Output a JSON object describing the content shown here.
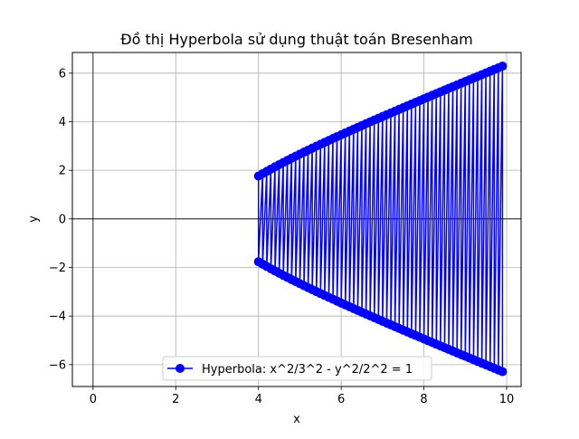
{
  "chart_data": {
    "type": "line",
    "title": "Đồ thị Hyperbola sử dụng thuật toán Bresenham",
    "xlabel": "x",
    "ylabel": "y",
    "xlim": [
      -0.5,
      10.35
    ],
    "ylim": [
      -6.9,
      6.85
    ],
    "x_ticks": [
      0,
      2,
      4,
      6,
      8,
      10
    ],
    "y_ticks": [
      -6,
      -4,
      -2,
      0,
      2,
      4,
      6
    ],
    "x_tick_labels": [
      "0",
      "2",
      "4",
      "6",
      "8",
      "10"
    ],
    "y_tick_labels": [
      "−6",
      "−4",
      "−2",
      "0",
      "2",
      "4",
      "6"
    ],
    "grid": true,
    "axis_lines_at_zero": true,
    "legend_position": "lower-center",
    "series": [
      {
        "name": "Hyperbola: x^2/3^2 - y^2/2^2 = 1",
        "color": "#0000ff",
        "marker": "circle",
        "x_start": 4.0,
        "x_end": 9.9,
        "x_step": 0.1,
        "semi_axis_a": 3,
        "semi_axis_b": 2,
        "order": "zigzag: (x, +y) then (x, -y) for each x"
      }
    ]
  }
}
